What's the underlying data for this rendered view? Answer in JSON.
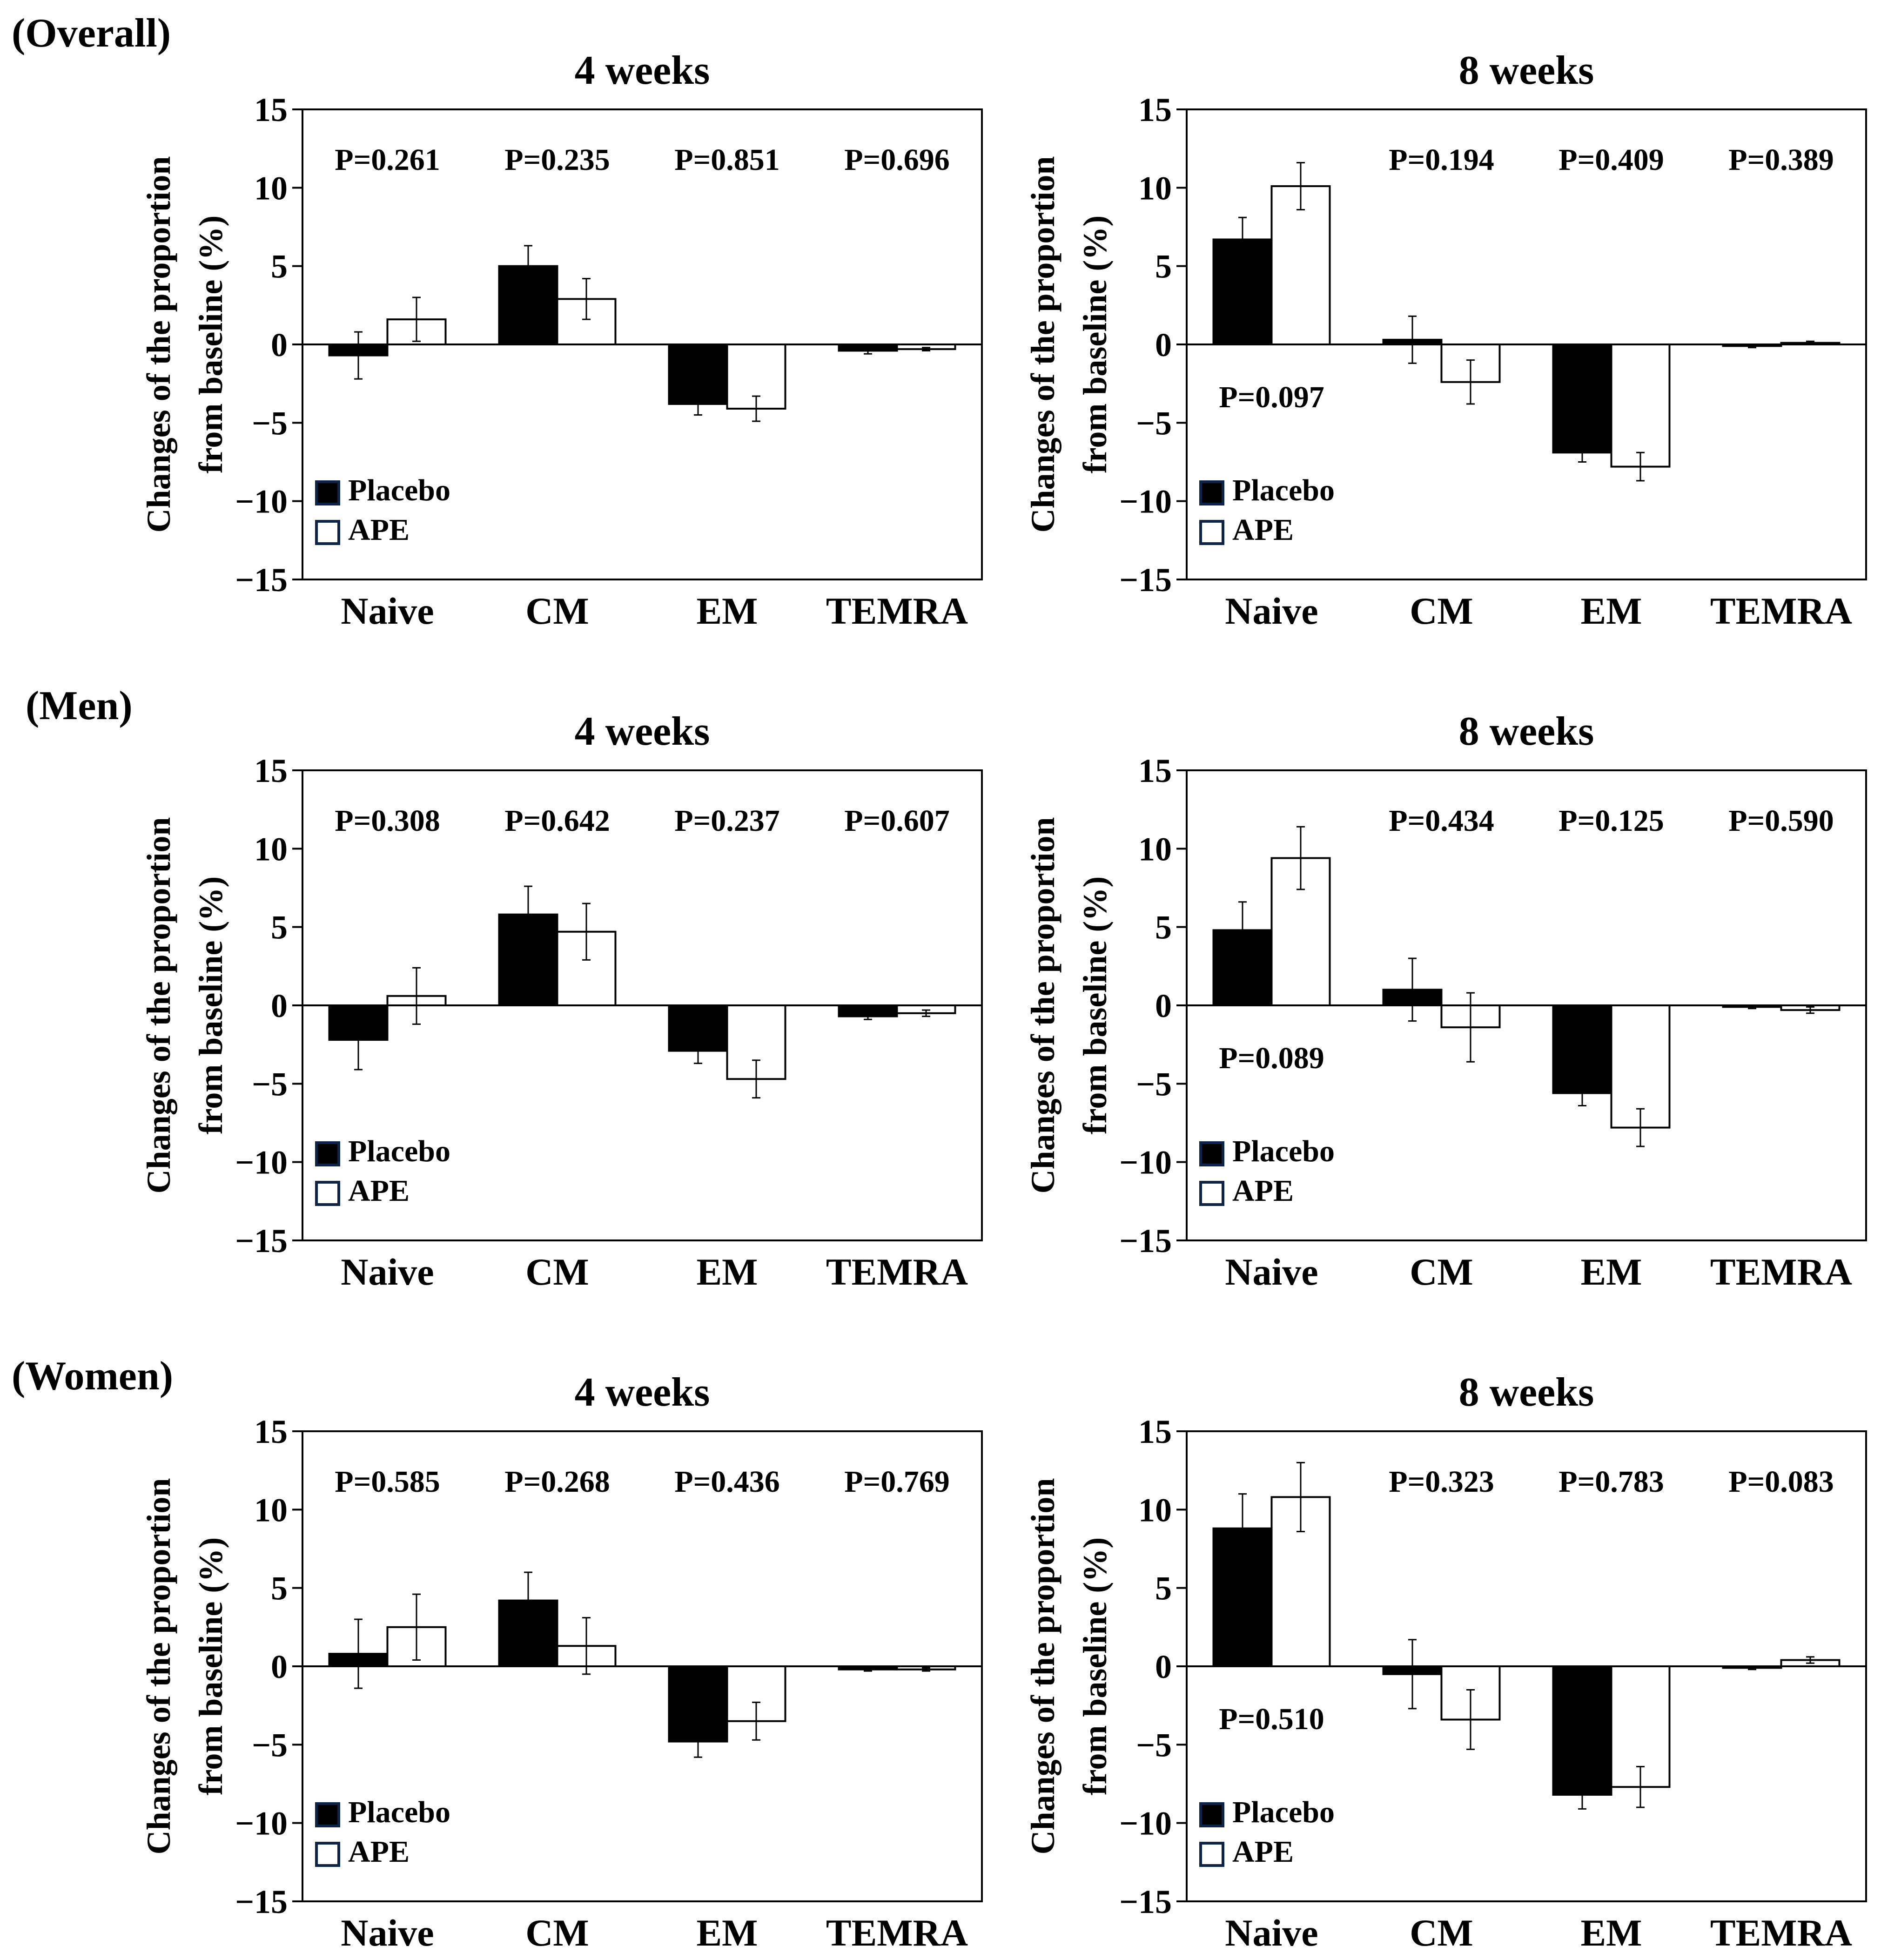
{
  "colors": {
    "placebo": "#000000",
    "ape": "#ffffff",
    "legend_border": "#0d2448",
    "axis": "#000000"
  },
  "groups": [
    "(Overall)",
    "(Men)",
    "(Women)"
  ],
  "chart_data": [
    {
      "type": "bar",
      "group": "(Overall)",
      "title": "4 weeks",
      "ylabel": [
        "Changes of the proportion",
        "from baseline (%)"
      ],
      "ylim": [
        -15,
        15
      ],
      "yticks": [
        15,
        10,
        5,
        0,
        -5,
        -10,
        -15
      ],
      "categories": [
        "Naive",
        "CM",
        "EM",
        "TEMRA"
      ],
      "series": [
        {
          "name": "Placebo",
          "values": [
            -0.7,
            5.0,
            -3.8,
            -0.4
          ],
          "errors": [
            1.5,
            1.3,
            0.7,
            0.2
          ]
        },
        {
          "name": "APE",
          "values": [
            1.6,
            2.9,
            -4.1,
            -0.3
          ],
          "errors": [
            1.4,
            1.3,
            0.8,
            0.1
          ]
        }
      ],
      "pvalues": [
        {
          "text": "P=0.261",
          "category": 0,
          "row": "top"
        },
        {
          "text": "P=0.235",
          "category": 1,
          "row": "top"
        },
        {
          "text": "P=0.851",
          "category": 2,
          "row": "top"
        },
        {
          "text": "P=0.696",
          "category": 3,
          "row": "top"
        }
      ]
    },
    {
      "type": "bar",
      "group": "(Overall)",
      "title": "8 weeks",
      "ylabel": [
        "Changes of the proportion",
        "from baseline (%)"
      ],
      "ylim": [
        -15,
        15
      ],
      "yticks": [
        15,
        10,
        5,
        0,
        -5,
        -10,
        -15
      ],
      "categories": [
        "Naive",
        "CM",
        "EM",
        "TEMRA"
      ],
      "series": [
        {
          "name": "Placebo",
          "values": [
            6.7,
            0.3,
            -6.9,
            -0.1
          ],
          "errors": [
            1.4,
            1.5,
            0.6,
            0.1
          ]
        },
        {
          "name": "APE",
          "values": [
            10.1,
            -2.4,
            -7.8,
            0.1
          ],
          "errors": [
            1.5,
            1.4,
            0.9,
            0.1
          ]
        }
      ],
      "pvalues": [
        {
          "text": "P=0.097",
          "category": 0,
          "row": "low"
        },
        {
          "text": "P=0.194",
          "category": 1,
          "row": "top"
        },
        {
          "text": "P=0.409",
          "category": 2,
          "row": "top"
        },
        {
          "text": "P=0.389",
          "category": 3,
          "row": "top"
        }
      ]
    },
    {
      "type": "bar",
      "group": "(Men)",
      "title": "4 weeks",
      "ylabel": [
        "Changes of the proportion",
        "from baseline (%)"
      ],
      "ylim": [
        -15,
        15
      ],
      "yticks": [
        15,
        10,
        5,
        0,
        -5,
        -10,
        -15
      ],
      "categories": [
        "Naive",
        "CM",
        "EM",
        "TEMRA"
      ],
      "series": [
        {
          "name": "Placebo",
          "values": [
            -2.2,
            5.8,
            -2.9,
            -0.7
          ],
          "errors": [
            1.9,
            1.8,
            0.8,
            0.2
          ]
        },
        {
          "name": "APE",
          "values": [
            0.6,
            4.7,
            -4.7,
            -0.5
          ],
          "errors": [
            1.8,
            1.8,
            1.2,
            0.2
          ]
        }
      ],
      "pvalues": [
        {
          "text": "P=0.308",
          "category": 0,
          "row": "top"
        },
        {
          "text": "P=0.642",
          "category": 1,
          "row": "top"
        },
        {
          "text": "P=0.237",
          "category": 2,
          "row": "top"
        },
        {
          "text": "P=0.607",
          "category": 3,
          "row": "top"
        }
      ]
    },
    {
      "type": "bar",
      "group": "(Men)",
      "title": "8 weeks",
      "ylabel": [
        "Changes of the proportion",
        "from baseline (%)"
      ],
      "ylim": [
        -15,
        15
      ],
      "yticks": [
        15,
        10,
        5,
        0,
        -5,
        -10,
        -15
      ],
      "categories": [
        "Naive",
        "CM",
        "EM",
        "TEMRA"
      ],
      "series": [
        {
          "name": "Placebo",
          "values": [
            4.8,
            1.0,
            -5.6,
            -0.1
          ],
          "errors": [
            1.8,
            2.0,
            0.8,
            0.1
          ]
        },
        {
          "name": "APE",
          "values": [
            9.4,
            -1.4,
            -7.8,
            -0.3
          ],
          "errors": [
            2.0,
            2.2,
            1.2,
            0.2
          ]
        }
      ],
      "pvalues": [
        {
          "text": "P=0.089",
          "category": 0,
          "row": "low"
        },
        {
          "text": "P=0.434",
          "category": 1,
          "row": "top"
        },
        {
          "text": "P=0.125",
          "category": 2,
          "row": "top"
        },
        {
          "text": "P=0.590",
          "category": 3,
          "row": "top"
        }
      ]
    },
    {
      "type": "bar",
      "group": "(Women)",
      "title": "4 weeks",
      "ylabel": [
        "Changes of the proportion",
        "from baseline (%)"
      ],
      "ylim": [
        -15,
        15
      ],
      "yticks": [
        15,
        10,
        5,
        0,
        -5,
        -10,
        -15
      ],
      "categories": [
        "Naive",
        "CM",
        "EM",
        "TEMRA"
      ],
      "series": [
        {
          "name": "Placebo",
          "values": [
            0.8,
            4.2,
            -4.8,
            -0.2
          ],
          "errors": [
            2.2,
            1.8,
            1.0,
            0.1
          ]
        },
        {
          "name": "APE",
          "values": [
            2.5,
            1.3,
            -3.5,
            -0.2
          ],
          "errors": [
            2.1,
            1.8,
            1.2,
            0.1
          ]
        }
      ],
      "pvalues": [
        {
          "text": "P=0.585",
          "category": 0,
          "row": "top"
        },
        {
          "text": "P=0.268",
          "category": 1,
          "row": "top"
        },
        {
          "text": "P=0.436",
          "category": 2,
          "row": "top"
        },
        {
          "text": "P=0.769",
          "category": 3,
          "row": "top"
        }
      ]
    },
    {
      "type": "bar",
      "group": "(Women)",
      "title": "8 weeks",
      "ylabel": [
        "Changes of the proportion",
        "from baseline (%)"
      ],
      "ylim": [
        -15,
        15
      ],
      "yticks": [
        15,
        10,
        5,
        0,
        -5,
        -10,
        -15
      ],
      "categories": [
        "Naive",
        "CM",
        "EM",
        "TEMRA"
      ],
      "series": [
        {
          "name": "Placebo",
          "values": [
            8.8,
            -0.5,
            -8.2,
            -0.1
          ],
          "errors": [
            2.2,
            2.2,
            0.9,
            0.1
          ]
        },
        {
          "name": "APE",
          "values": [
            10.8,
            -3.4,
            -7.7,
            0.4
          ],
          "errors": [
            2.2,
            1.9,
            1.3,
            0.2
          ]
        }
      ],
      "pvalues": [
        {
          "text": "P=0.510",
          "category": 0,
          "row": "low"
        },
        {
          "text": "P=0.323",
          "category": 1,
          "row": "top"
        },
        {
          "text": "P=0.783",
          "category": 2,
          "row": "top"
        },
        {
          "text": "P=0.083",
          "category": 3,
          "row": "top"
        }
      ]
    }
  ]
}
